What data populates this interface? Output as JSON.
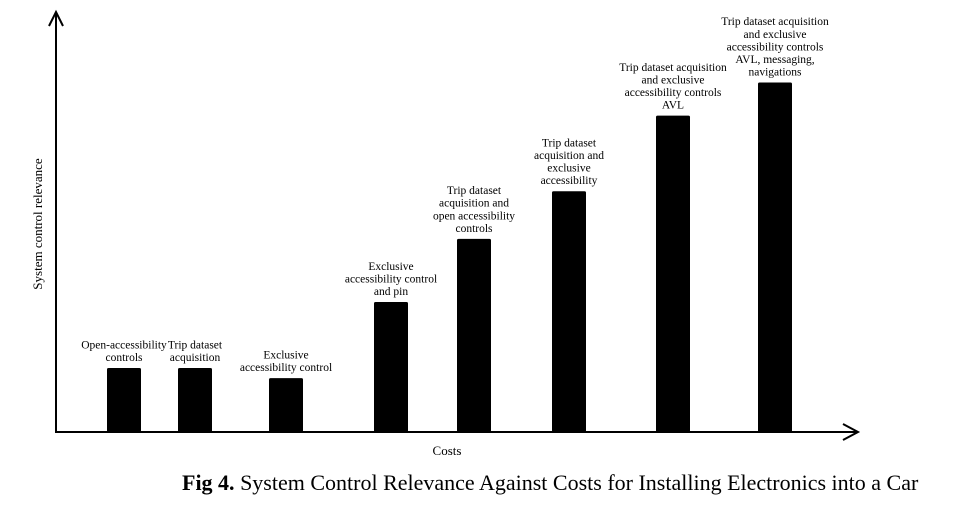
{
  "caption": {
    "prefix": "Fig 4.",
    "text": " System Control Relevance Against Costs for Installing Electronics into a Car"
  },
  "chart_data": {
    "type": "bar",
    "xlabel": "Costs",
    "ylabel": "System control relevance",
    "ylim": [
      0,
      100
    ],
    "grid": false,
    "legend": "none",
    "categories": [
      [
        "Open-accessibility",
        "controls"
      ],
      [
        "Trip dataset",
        "acquisition"
      ],
      [
        "Exclusive",
        "accessibility control"
      ],
      [
        "Exclusive",
        "accessibility control",
        "and pin"
      ],
      [
        "Trip dataset",
        "acquisition and",
        "open accessibility",
        "controls"
      ],
      [
        "Trip dataset",
        "acquisition and",
        "exclusive",
        "accessibility"
      ],
      [
        "Trip dataset acquisition",
        "and exclusive",
        "accessibility controls",
        "AVL"
      ],
      [
        "Trip dataset acquisition",
        "and exclusive",
        "accessibility controls",
        "AVL, messaging,",
        "navigations"
      ]
    ],
    "values": [
      15.3,
      15.3,
      12.9,
      31.1,
      46.2,
      57.6,
      75.7,
      83.6
    ],
    "bar_color": "#000000"
  }
}
